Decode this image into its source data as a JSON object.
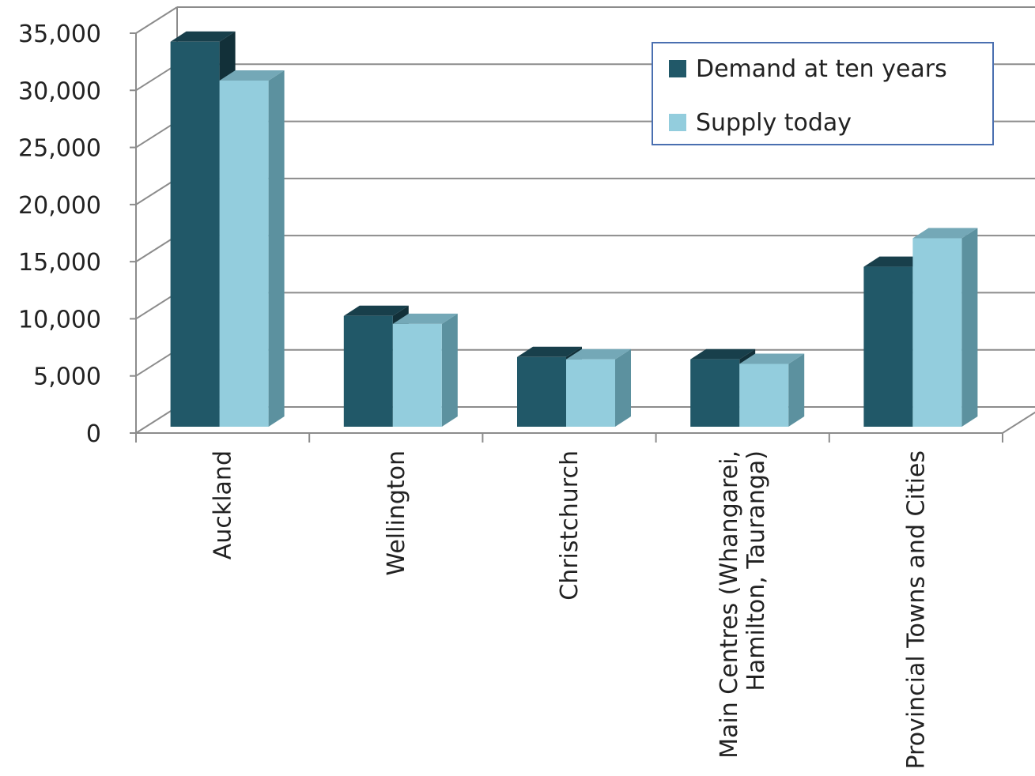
{
  "chart_data": {
    "type": "bar",
    "title": "",
    "xlabel": "",
    "ylabel": "",
    "categories": [
      "Auckland",
      "Wellington",
      "Christchurch",
      "Main Centres (Whangarei,|Hamilton, Tauranga)",
      "Provincial Towns and Cities"
    ],
    "series": [
      {
        "name": "Demand at ten years",
        "values": [
          33700,
          9700,
          6100,
          5900,
          14000
        ],
        "color": "#215868"
      },
      {
        "name": "Supply today",
        "values": [
          30300,
          9000,
          5900,
          5500,
          16500
        ],
        "color": "#93cddd"
      }
    ],
    "ylim": [
      0,
      35000
    ],
    "yticks": [
      "0",
      "5,000",
      "10,000",
      "15,000",
      "20,000",
      "25,000",
      "30,000",
      "35,000"
    ],
    "grid": true,
    "legend_position": "top-right",
    "style": "3d-clustered-column"
  }
}
